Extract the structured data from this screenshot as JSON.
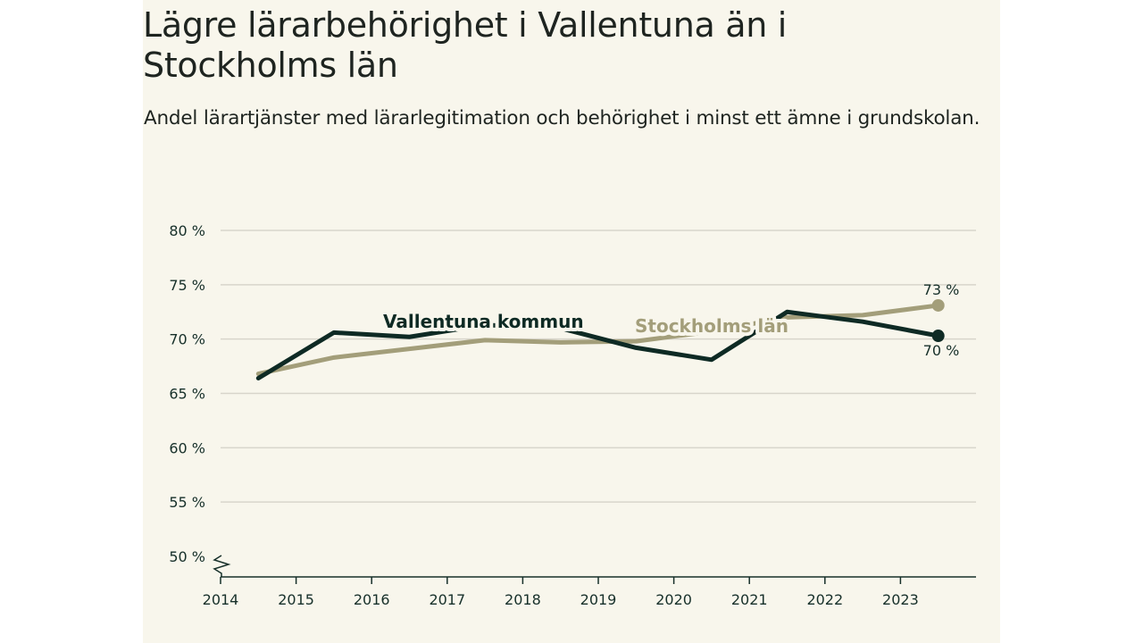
{
  "chart_data": {
    "type": "line",
    "title": "Lägre lärarbehörighet i Vallentuna än i Stockholms län",
    "subtitle": "Andel lärartjänster med lärarlegitimation och behörighet i minst ett ämne i grundskolan.",
    "x_ticks": [
      "2014",
      "2015",
      "2016",
      "2017",
      "2018",
      "2019",
      "2020",
      "2021",
      "2022",
      "2023"
    ],
    "y_ticks": [
      "80 %",
      "75 %",
      "70 %",
      "65 %",
      "60 %",
      "55 %",
      "50 %"
    ],
    "ylim": [
      50,
      80
    ],
    "xlim": [
      2014,
      2024
    ],
    "series": [
      {
        "name": "Stockholms län",
        "color": "#a39e7a",
        "x": [
          2014.5,
          2015.5,
          2016.5,
          2017.5,
          2018.5,
          2019.5,
          2020.5,
          2021.5,
          2022.5,
          2023.5
        ],
        "values": [
          66.8,
          68.3,
          69.1,
          69.9,
          69.7,
          69.8,
          70.7,
          72.0,
          72.2,
          73.1
        ],
        "end_label": "73 %"
      },
      {
        "name": "Vallentuna kommun",
        "color": "#0e2a24",
        "x": [
          2014.5,
          2015.5,
          2016.5,
          2017.5,
          2018.5,
          2019.5,
          2020.5,
          2021.5,
          2022.5,
          2023.5
        ],
        "values": [
          66.4,
          70.6,
          70.2,
          71.3,
          71.0,
          69.2,
          68.1,
          72.5,
          71.6,
          70.3
        ],
        "end_label": "70 %"
      }
    ]
  }
}
